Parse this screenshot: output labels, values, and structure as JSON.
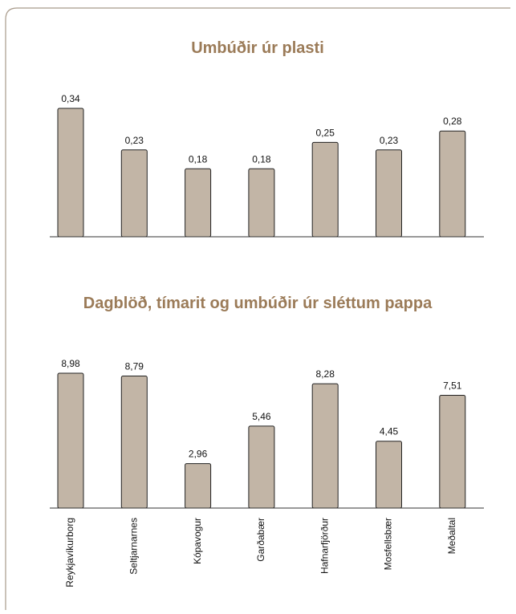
{
  "chart_data": [
    {
      "type": "bar",
      "title": "Umbúðir úr plasti",
      "values": [
        0.34,
        0.23,
        0.18,
        0.18,
        0.25,
        0.23,
        0.28
      ],
      "value_labels": [
        "0,34",
        "0,23",
        "0,18",
        "0,18",
        "0,25",
        "0,23",
        "0,28"
      ],
      "color": "#c2b5a6"
    },
    {
      "type": "bar",
      "title": "Dagblöð, tímarit og umbúðir úr sléttum pappa",
      "categories": [
        "Reykjavíkurborg",
        "Seltjarnarnes",
        "Kópavogur",
        "Garðabær",
        "Hafnarfjörður",
        "Mosfellsbær",
        "Meðaltal"
      ],
      "values": [
        8.98,
        8.79,
        2.96,
        5.46,
        8.28,
        4.45,
        7.51
      ],
      "value_labels": [
        "8,98",
        "8,79",
        "2,96",
        "5,46",
        "8,28",
        "4,45",
        "7,51"
      ],
      "color": "#c2b5a6"
    }
  ]
}
